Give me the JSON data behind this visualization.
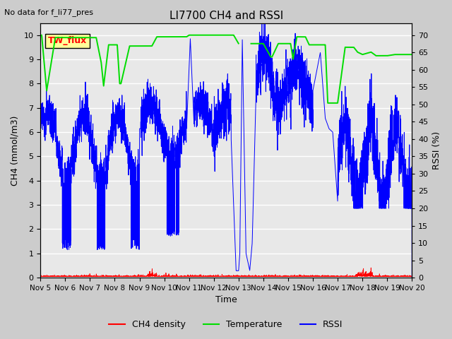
{
  "title": "LI7700 CH4 and RSSI",
  "top_left_text": "No data for f_li77_pres",
  "legend_box_text": "TW_flux",
  "xlabel": "Time",
  "ylabel_left": "CH4 (mmol/m3)",
  "ylabel_right": "RSSI (%)",
  "xlim_days": [
    5,
    20
  ],
  "ylim_left": [
    0.0,
    10.5
  ],
  "ylim_right": [
    0,
    73.5
  ],
  "yticks_left": [
    0.0,
    1.0,
    2.0,
    3.0,
    4.0,
    5.0,
    6.0,
    7.0,
    8.0,
    9.0,
    10.0
  ],
  "yticks_right": [
    0,
    5,
    10,
    15,
    20,
    25,
    30,
    35,
    40,
    45,
    50,
    55,
    60,
    65,
    70
  ],
  "xtick_labels": [
    "Nov 5",
    "Nov 6",
    "Nov 7",
    "Nov 8",
    "Nov 9",
    "Nov 10",
    "Nov 11",
    "Nov 12",
    "Nov 13",
    "Nov 14",
    "Nov 15",
    "Nov 16",
    "Nov 17",
    "Nov 18",
    "Nov 19",
    "Nov 20"
  ],
  "color_ch4": "#ff0000",
  "color_temp": "#00dd00",
  "color_rssi": "#0000ff",
  "color_bg": "#e8e8e8",
  "color_grid": "#ffffff",
  "legend_labels": [
    "CH4 density",
    "Temperature",
    "RSSI"
  ],
  "legend_colors": [
    "#ff0000",
    "#00dd00",
    "#0000ff"
  ],
  "scale_factor": 7.0,
  "fig_bg": "#cccccc"
}
